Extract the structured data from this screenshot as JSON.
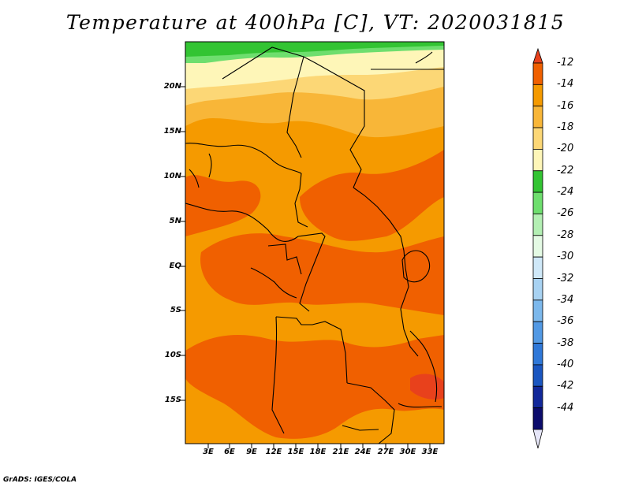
{
  "title": "Temperature at 400hPa [C], VT: 2020031815",
  "lat_labels": [
    "20N",
    "15N",
    "10N",
    "5N",
    "EQ",
    "5S",
    "10S",
    "15S"
  ],
  "lon_labels": [
    "3E",
    "6E",
    "9E",
    "12E",
    "15E",
    "18E",
    "21E",
    "24E",
    "27E",
    "30E",
    "33E"
  ],
  "colorbar": {
    "labels": [
      "-12",
      "-14",
      "-16",
      "-18",
      "-20",
      "-22",
      "-24",
      "-26",
      "-28",
      "-30",
      "-32",
      "-34",
      "-36",
      "-38",
      "-40",
      "-42",
      "-44"
    ],
    "colors": [
      "#e8411c",
      "#f06000",
      "#f59a00",
      "#f8b638",
      "#fcd776",
      "#fef6b8",
      "#33c433",
      "#6ede6e",
      "#b3efb3",
      "#e4fae4",
      "#cfe8f8",
      "#a8d2f2",
      "#7cb8ec",
      "#5299e4",
      "#2f78d8",
      "#1a56c0",
      "#12289a",
      "#0c0c6c",
      "#e6e6f8"
    ]
  },
  "footer": "GrADS: IGES/COLA"
}
